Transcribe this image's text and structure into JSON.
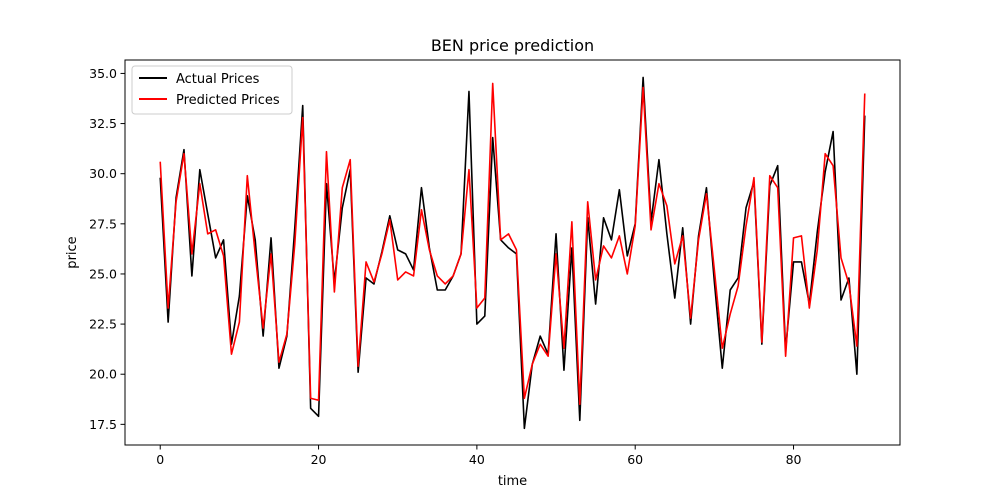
{
  "chart_data": {
    "type": "line",
    "title": "BEN price prediction",
    "xlabel": "time",
    "ylabel": "price",
    "xlim": [
      -4.45,
      93.45
    ],
    "ylim": [
      16.47,
      35.67
    ],
    "xticks": [
      0,
      20,
      40,
      60,
      80
    ],
    "yticks": [
      17.5,
      20.0,
      22.5,
      25.0,
      27.5,
      30.0,
      32.5,
      35.0
    ],
    "grid": false,
    "legend_position": "top-left",
    "series": [
      {
        "name": "Actual Prices",
        "color": "#000000",
        "x": [
          0,
          1,
          2,
          3,
          4,
          5,
          6,
          7,
          8,
          9,
          10,
          11,
          12,
          13,
          14,
          15,
          16,
          17,
          18,
          19,
          20,
          21,
          22,
          23,
          24,
          25,
          26,
          27,
          28,
          29,
          30,
          31,
          32,
          33,
          34,
          35,
          36,
          37,
          38,
          39,
          40,
          41,
          42,
          43,
          44,
          45,
          46,
          47,
          48,
          49,
          50,
          51,
          52,
          53,
          54,
          55,
          56,
          57,
          58,
          59,
          60,
          61,
          62,
          63,
          64,
          65,
          66,
          67,
          68,
          69,
          70,
          71,
          72,
          73,
          74,
          75,
          76,
          77,
          78,
          79,
          80,
          81,
          82,
          83,
          84,
          85,
          86,
          87,
          88,
          89
        ],
        "values": [
          29.8,
          22.6,
          28.8,
          31.2,
          24.9,
          30.2,
          28.0,
          25.8,
          26.7,
          21.5,
          23.9,
          28.9,
          26.7,
          21.9,
          26.8,
          20.3,
          21.9,
          27.3,
          33.4,
          18.3,
          17.9,
          29.5,
          24.6,
          28.3,
          30.2,
          20.1,
          24.8,
          24.5,
          26.1,
          27.9,
          26.2,
          26.0,
          25.2,
          29.3,
          26.3,
          24.2,
          24.2,
          24.9,
          26.0,
          34.1,
          22.5,
          22.9,
          31.8,
          26.7,
          26.3,
          26.0,
          17.3,
          20.5,
          21.9,
          21.0,
          27.0,
          20.2,
          26.3,
          17.7,
          27.8,
          23.5,
          27.8,
          26.7,
          29.2,
          25.9,
          27.5,
          34.8,
          27.6,
          30.7,
          27.0,
          23.8,
          27.3,
          22.5,
          26.9,
          29.3,
          24.6,
          20.3,
          24.2,
          24.8,
          28.3,
          29.6,
          21.5,
          29.4,
          30.4,
          21.2,
          25.6,
          25.6,
          23.5,
          27.1,
          30.1,
          32.1,
          23.7,
          24.8,
          20.0,
          32.9
        ]
      },
      {
        "name": "Predicted Prices",
        "color": "#ff0000",
        "x": [
          0,
          1,
          2,
          3,
          4,
          5,
          6,
          7,
          8,
          9,
          10,
          11,
          12,
          13,
          14,
          15,
          16,
          17,
          18,
          19,
          20,
          21,
          22,
          23,
          24,
          25,
          26,
          27,
          28,
          29,
          30,
          31,
          32,
          33,
          34,
          35,
          36,
          37,
          38,
          39,
          40,
          41,
          42,
          43,
          44,
          45,
          46,
          47,
          48,
          49,
          50,
          51,
          52,
          53,
          54,
          55,
          56,
          57,
          58,
          59,
          60,
          61,
          62,
          63,
          64,
          65,
          66,
          67,
          68,
          69,
          70,
          71,
          72,
          73,
          74,
          75,
          76,
          77,
          78,
          79,
          80,
          81,
          82,
          83,
          84,
          85,
          86,
          87,
          88,
          89
        ],
        "values": [
          30.6,
          23.3,
          28.6,
          31.0,
          26.0,
          29.5,
          27.0,
          27.2,
          25.9,
          21.0,
          22.6,
          29.9,
          26.0,
          22.3,
          26.0,
          20.6,
          22.0,
          26.5,
          32.8,
          18.8,
          18.7,
          31.1,
          24.1,
          29.3,
          30.7,
          20.4,
          25.6,
          24.6,
          26.0,
          27.7,
          24.7,
          25.1,
          24.9,
          28.2,
          26.2,
          24.9,
          24.5,
          24.9,
          26.0,
          30.2,
          23.3,
          23.8,
          34.5,
          26.7,
          27.0,
          26.2,
          18.8,
          20.5,
          21.5,
          20.9,
          26.0,
          21.3,
          27.6,
          18.5,
          28.6,
          24.7,
          26.4,
          25.8,
          26.9,
          25.0,
          27.4,
          34.3,
          27.2,
          29.5,
          28.4,
          25.5,
          26.9,
          22.8,
          26.7,
          29.0,
          25.2,
          21.3,
          23.0,
          24.4,
          27.4,
          29.8,
          21.6,
          29.9,
          29.3,
          20.9,
          26.8,
          26.9,
          23.3,
          26.2,
          31.0,
          30.4,
          25.8,
          24.5,
          21.4,
          34.0
        ]
      }
    ]
  }
}
